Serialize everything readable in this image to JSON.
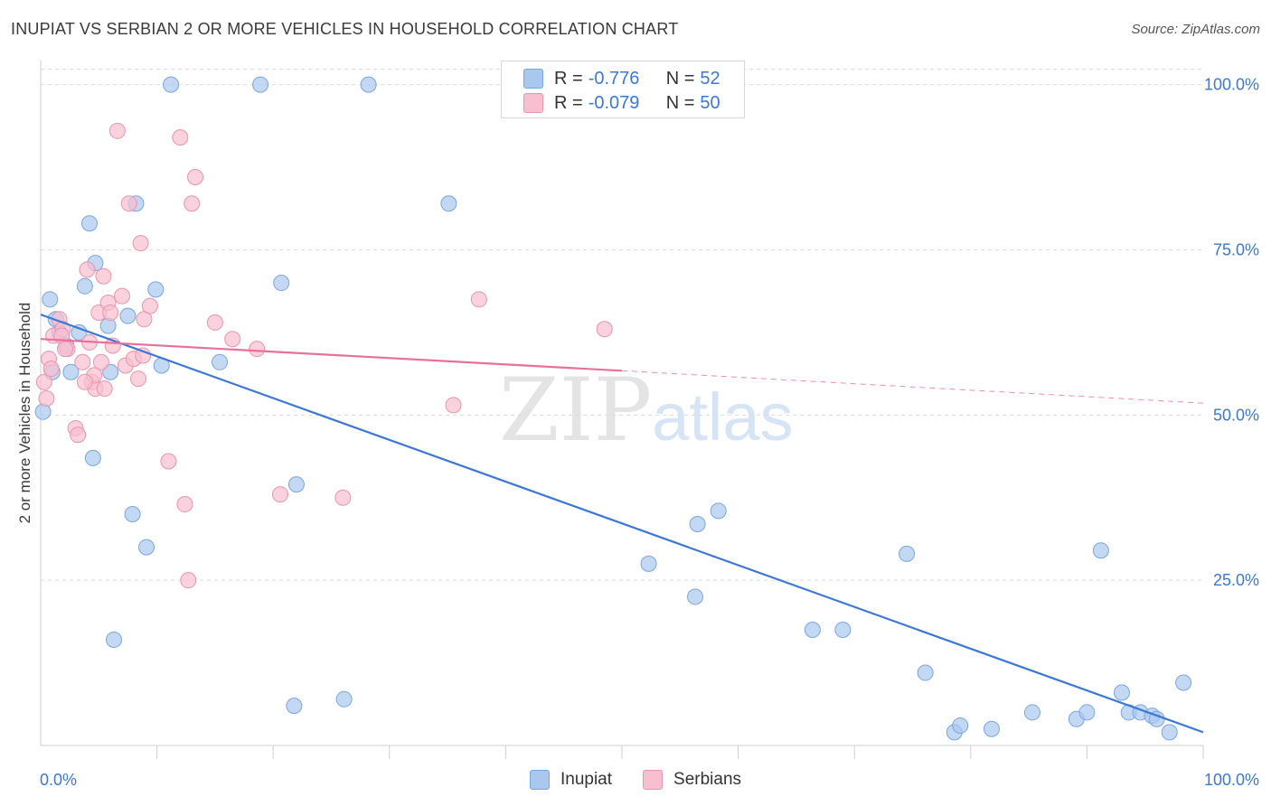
{
  "title": "INUPIAT VS SERBIAN 2 OR MORE VEHICLES IN HOUSEHOLD CORRELATION CHART",
  "source": "Source: ZipAtlas.com",
  "watermark": {
    "zip": "ZIP",
    "atlas": "atlas"
  },
  "legend_top": [
    {
      "r_label": "R = ",
      "r_value": "-0.776",
      "n_label": "N = ",
      "n_value": "52",
      "color": "#aac7ee",
      "stroke": "#7aa6de"
    },
    {
      "r_label": "R = ",
      "r_value": "-0.079",
      "n_label": "N = ",
      "n_value": "50",
      "color": "#f7bfd0",
      "stroke": "#ec93ae"
    }
  ],
  "legend_bottom": [
    {
      "label": "Inupiat",
      "color": "#aac7ee"
    },
    {
      "label": "Serbians",
      "color": "#f7bfd0"
    }
  ],
  "chart_data": {
    "type": "scatter",
    "title": "INUPIAT VS SERBIAN 2 OR MORE VEHICLES IN HOUSEHOLD CORRELATION CHART",
    "xlabel": "",
    "ylabel": "2 or more Vehicles in Household",
    "xlim": [
      0,
      100
    ],
    "ylim": [
      0,
      102
    ],
    "x_tick_labels": [
      "0.0%",
      "100.0%"
    ],
    "y_tick_labels": [
      "25.0%",
      "50.0%",
      "75.0%",
      "100.0%"
    ],
    "y_ticks": [
      25,
      50,
      75,
      100
    ],
    "grid": true,
    "legend_position": "top-center",
    "series": [
      {
        "name": "Inupiat",
        "color": "#3b78d8",
        "fill": "#aac7ee",
        "points": [
          [
            0.2,
            50.5
          ],
          [
            0.8,
            67.5
          ],
          [
            1.3,
            64.5
          ],
          [
            1.6,
            62.5
          ],
          [
            2.2,
            60.5
          ],
          [
            2.6,
            56.5
          ],
          [
            3.3,
            62.5
          ],
          [
            3.8,
            69.5
          ],
          [
            4.2,
            79
          ],
          [
            4.5,
            43.5
          ],
          [
            4.7,
            73
          ],
          [
            5.8,
            63.5
          ],
          [
            7.5,
            65
          ],
          [
            7.9,
            35
          ],
          [
            8.2,
            82
          ],
          [
            9.1,
            30
          ],
          [
            9.9,
            69
          ],
          [
            10.4,
            57.5
          ],
          [
            11.2,
            100
          ],
          [
            6.3,
            16
          ],
          [
            15.4,
            58
          ],
          [
            18.9,
            100
          ],
          [
            20.7,
            70
          ],
          [
            21.8,
            6
          ],
          [
            22.0,
            39.5
          ],
          [
            26.1,
            7
          ],
          [
            28.2,
            100
          ],
          [
            35.1,
            82
          ],
          [
            1.0,
            56.5
          ],
          [
            6.0,
            56.5
          ],
          [
            52.3,
            27.5
          ],
          [
            56.3,
            22.5
          ],
          [
            56.5,
            33.5
          ],
          [
            58.3,
            35.5
          ],
          [
            66.4,
            17.5
          ],
          [
            69.0,
            17.5
          ],
          [
            74.5,
            29
          ],
          [
            76.1,
            11
          ],
          [
            78.6,
            2
          ],
          [
            79.1,
            3
          ],
          [
            81.8,
            2.5
          ],
          [
            85.3,
            5
          ],
          [
            89.1,
            4
          ],
          [
            90.0,
            5
          ],
          [
            91.2,
            29.5
          ],
          [
            93.0,
            8
          ],
          [
            93.6,
            5
          ],
          [
            94.6,
            5
          ],
          [
            95.6,
            4.5
          ],
          [
            96.0,
            4
          ],
          [
            97.1,
            2
          ],
          [
            98.3,
            9.5
          ]
        ],
        "trend": {
          "x0": 0,
          "y0": 65.2,
          "x1": 100,
          "y1": 2.0
        }
      },
      {
        "name": "Serbians",
        "color": "#e8709a",
        "fill": "#f7bfd0",
        "points": [
          [
            0.3,
            55
          ],
          [
            0.5,
            52.5
          ],
          [
            0.7,
            58.5
          ],
          [
            0.9,
            57
          ],
          [
            1.1,
            62
          ],
          [
            1.6,
            64.5
          ],
          [
            1.9,
            63
          ],
          [
            2.3,
            60
          ],
          [
            3.0,
            48
          ],
          [
            3.2,
            47
          ],
          [
            3.6,
            58
          ],
          [
            4.0,
            72
          ],
          [
            4.2,
            61
          ],
          [
            4.4,
            55
          ],
          [
            4.7,
            54
          ],
          [
            5.0,
            65.5
          ],
          [
            5.2,
            58
          ],
          [
            5.4,
            71
          ],
          [
            5.8,
            67
          ],
          [
            6.0,
            65.5
          ],
          [
            6.2,
            60.5
          ],
          [
            6.6,
            93
          ],
          [
            7.0,
            68
          ],
          [
            7.3,
            57.5
          ],
          [
            7.6,
            82
          ],
          [
            8.0,
            58.5
          ],
          [
            8.4,
            55.5
          ],
          [
            8.6,
            76
          ],
          [
            8.8,
            59
          ],
          [
            8.9,
            64.5
          ],
          [
            9.4,
            66.5
          ],
          [
            11.0,
            43
          ],
          [
            12.0,
            92
          ],
          [
            12.4,
            36.5
          ],
          [
            12.7,
            25
          ],
          [
            13.0,
            82
          ],
          [
            13.3,
            86
          ],
          [
            15.0,
            64
          ],
          [
            16.5,
            61.5
          ],
          [
            18.6,
            60
          ],
          [
            20.6,
            38
          ],
          [
            26.0,
            37.5
          ],
          [
            35.5,
            51.5
          ],
          [
            37.7,
            67.5
          ],
          [
            48.5,
            63
          ],
          [
            1.8,
            62
          ],
          [
            2.1,
            60
          ],
          [
            4.6,
            56
          ],
          [
            5.5,
            54
          ],
          [
            3.8,
            55
          ]
        ],
        "trend": {
          "x0": 0,
          "y0": 61.5,
          "x1": 50,
          "y1": 56.7
        },
        "trend_dashed": {
          "x0": 50,
          "y0": 56.7,
          "x1": 100,
          "y1": 51.8
        }
      }
    ]
  }
}
